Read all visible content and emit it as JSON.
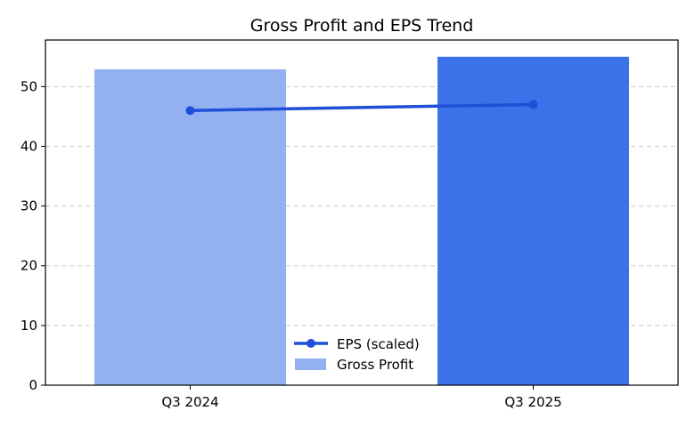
{
  "chart_data": {
    "type": "bar",
    "title": "Gross Profit and EPS Trend",
    "xlabel": "",
    "ylabel": "",
    "categories": [
      "Q3 2024",
      "Q3 2025"
    ],
    "ylim": [
      0,
      57.8
    ],
    "yticks": [
      0,
      10,
      20,
      30,
      40,
      50
    ],
    "grid": "y-dashed",
    "legend_position": "bottom-center",
    "series": [
      {
        "name": "Gross Profit",
        "kind": "bar",
        "values": [
          52.9,
          55.0
        ],
        "colors": [
          "#93b1f1",
          "#3b72e9"
        ]
      },
      {
        "name": "EPS (scaled)",
        "kind": "line",
        "values": [
          46.0,
          47.0
        ],
        "color": "#1f4fd6"
      }
    ]
  }
}
